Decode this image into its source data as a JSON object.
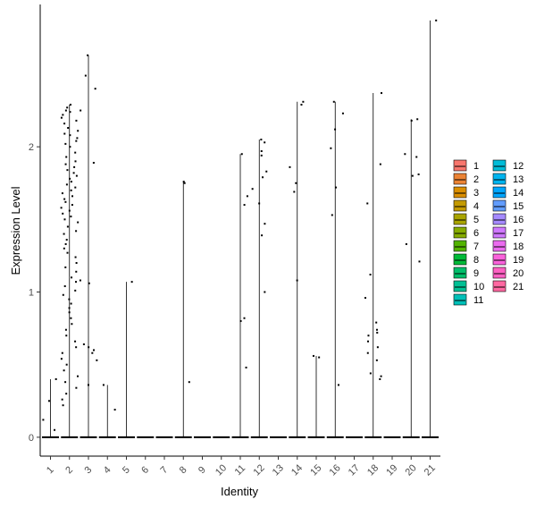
{
  "chart_data": {
    "type": "violin",
    "xlabel": "Identity",
    "ylabel": "Expression Level",
    "ylim": [
      -0.13,
      2.98
    ],
    "yticks": [
      0,
      1,
      2
    ],
    "categories": [
      "1",
      "2",
      "3",
      "4",
      "5",
      "6",
      "7",
      "8",
      "9",
      "10",
      "11",
      "12",
      "13",
      "14",
      "15",
      "16",
      "17",
      "18",
      "19",
      "20",
      "21"
    ],
    "colors": [
      "#F8766D",
      "#EB8335",
      "#DA8E00",
      "#C49A00",
      "#A9A400",
      "#86AC00",
      "#53B400",
      "#00BA38",
      "#00BE6A",
      "#00C094",
      "#00C0B8",
      "#00BCD8",
      "#00B4EF",
      "#00A6FF",
      "#619CFF",
      "#A58AFF",
      "#CF78FF",
      "#EB6BEF",
      "#FA62DB",
      "#FF61C3",
      "#FF68A1"
    ],
    "max_expression": [
      0.4,
      2.29,
      2.63,
      0.36,
      1.07,
      0.0,
      0.0,
      1.76,
      0.0,
      0.0,
      1.95,
      2.05,
      0.0,
      2.31,
      0.56,
      2.31,
      0.0,
      2.37,
      0.0,
      2.19,
      2.87
    ],
    "points": {
      "1": [
        0.05,
        0.12,
        0.25,
        0.4
      ],
      "2": [
        2.29,
        2.27,
        2.25,
        2.24,
        2.22,
        2.2,
        2.18,
        2.16,
        2.13,
        2.11,
        2.09,
        2.08,
        2.06,
        2.04,
        2.02,
        2.0,
        1.96,
        1.93,
        1.9,
        1.88,
        1.86,
        1.84,
        1.82,
        1.8,
        1.78,
        1.76,
        1.74,
        1.72,
        1.7,
        1.68,
        1.66,
        1.64,
        1.62,
        1.6,
        1.58,
        1.56,
        1.54,
        1.52,
        1.5,
        1.48,
        1.45,
        1.42,
        1.4,
        1.36,
        1.33,
        1.3,
        1.27,
        1.24,
        1.2,
        1.17,
        1.14,
        1.1,
        1.07,
        1.04,
        1.01,
        0.98,
        0.95,
        0.92,
        0.89,
        0.86,
        0.82,
        0.78,
        0.74,
        0.7,
        0.66,
        0.62,
        0.58,
        0.54,
        0.5,
        0.46,
        0.42,
        0.38,
        0.34,
        0.3,
        0.26,
        0.22
      ],
      "3": [
        2.63,
        2.49,
        2.4,
        2.25,
        1.89,
        1.08,
        1.06,
        0.64,
        0.62,
        0.6,
        0.58,
        0.53,
        0.36
      ],
      "4": [
        0.36,
        0.19
      ],
      "5": [
        1.07
      ],
      "8": [
        1.76,
        1.75,
        0.38
      ],
      "11": [
        1.95,
        1.66,
        1.6,
        0.82,
        0.8,
        0.48
      ],
      "12": [
        2.05,
        2.03,
        1.97,
        1.94,
        1.83,
        1.79,
        1.71,
        1.61,
        1.47,
        1.39,
        1.0
      ],
      "14": [
        2.31,
        2.29,
        1.86,
        1.75,
        1.69,
        1.08
      ],
      "15": [
        0.56,
        0.55
      ],
      "16": [
        2.31,
        2.23,
        2.12,
        1.99,
        1.72,
        1.53,
        0.36
      ],
      "18": [
        2.37,
        1.88,
        1.61,
        1.12,
        0.96,
        0.79,
        0.74,
        0.72,
        0.7,
        0.66,
        0.62,
        0.58,
        0.53,
        0.44,
        0.42,
        0.4
      ],
      "20": [
        2.19,
        2.18,
        1.95,
        1.93,
        1.81,
        1.8,
        1.33,
        1.21
      ],
      "21": [
        2.87
      ]
    },
    "legend": {
      "position": "right",
      "items": [
        "1",
        "2",
        "3",
        "4",
        "5",
        "6",
        "7",
        "8",
        "9",
        "10",
        "11",
        "12",
        "13",
        "14",
        "15",
        "16",
        "17",
        "18",
        "19",
        "20",
        "21"
      ]
    }
  }
}
